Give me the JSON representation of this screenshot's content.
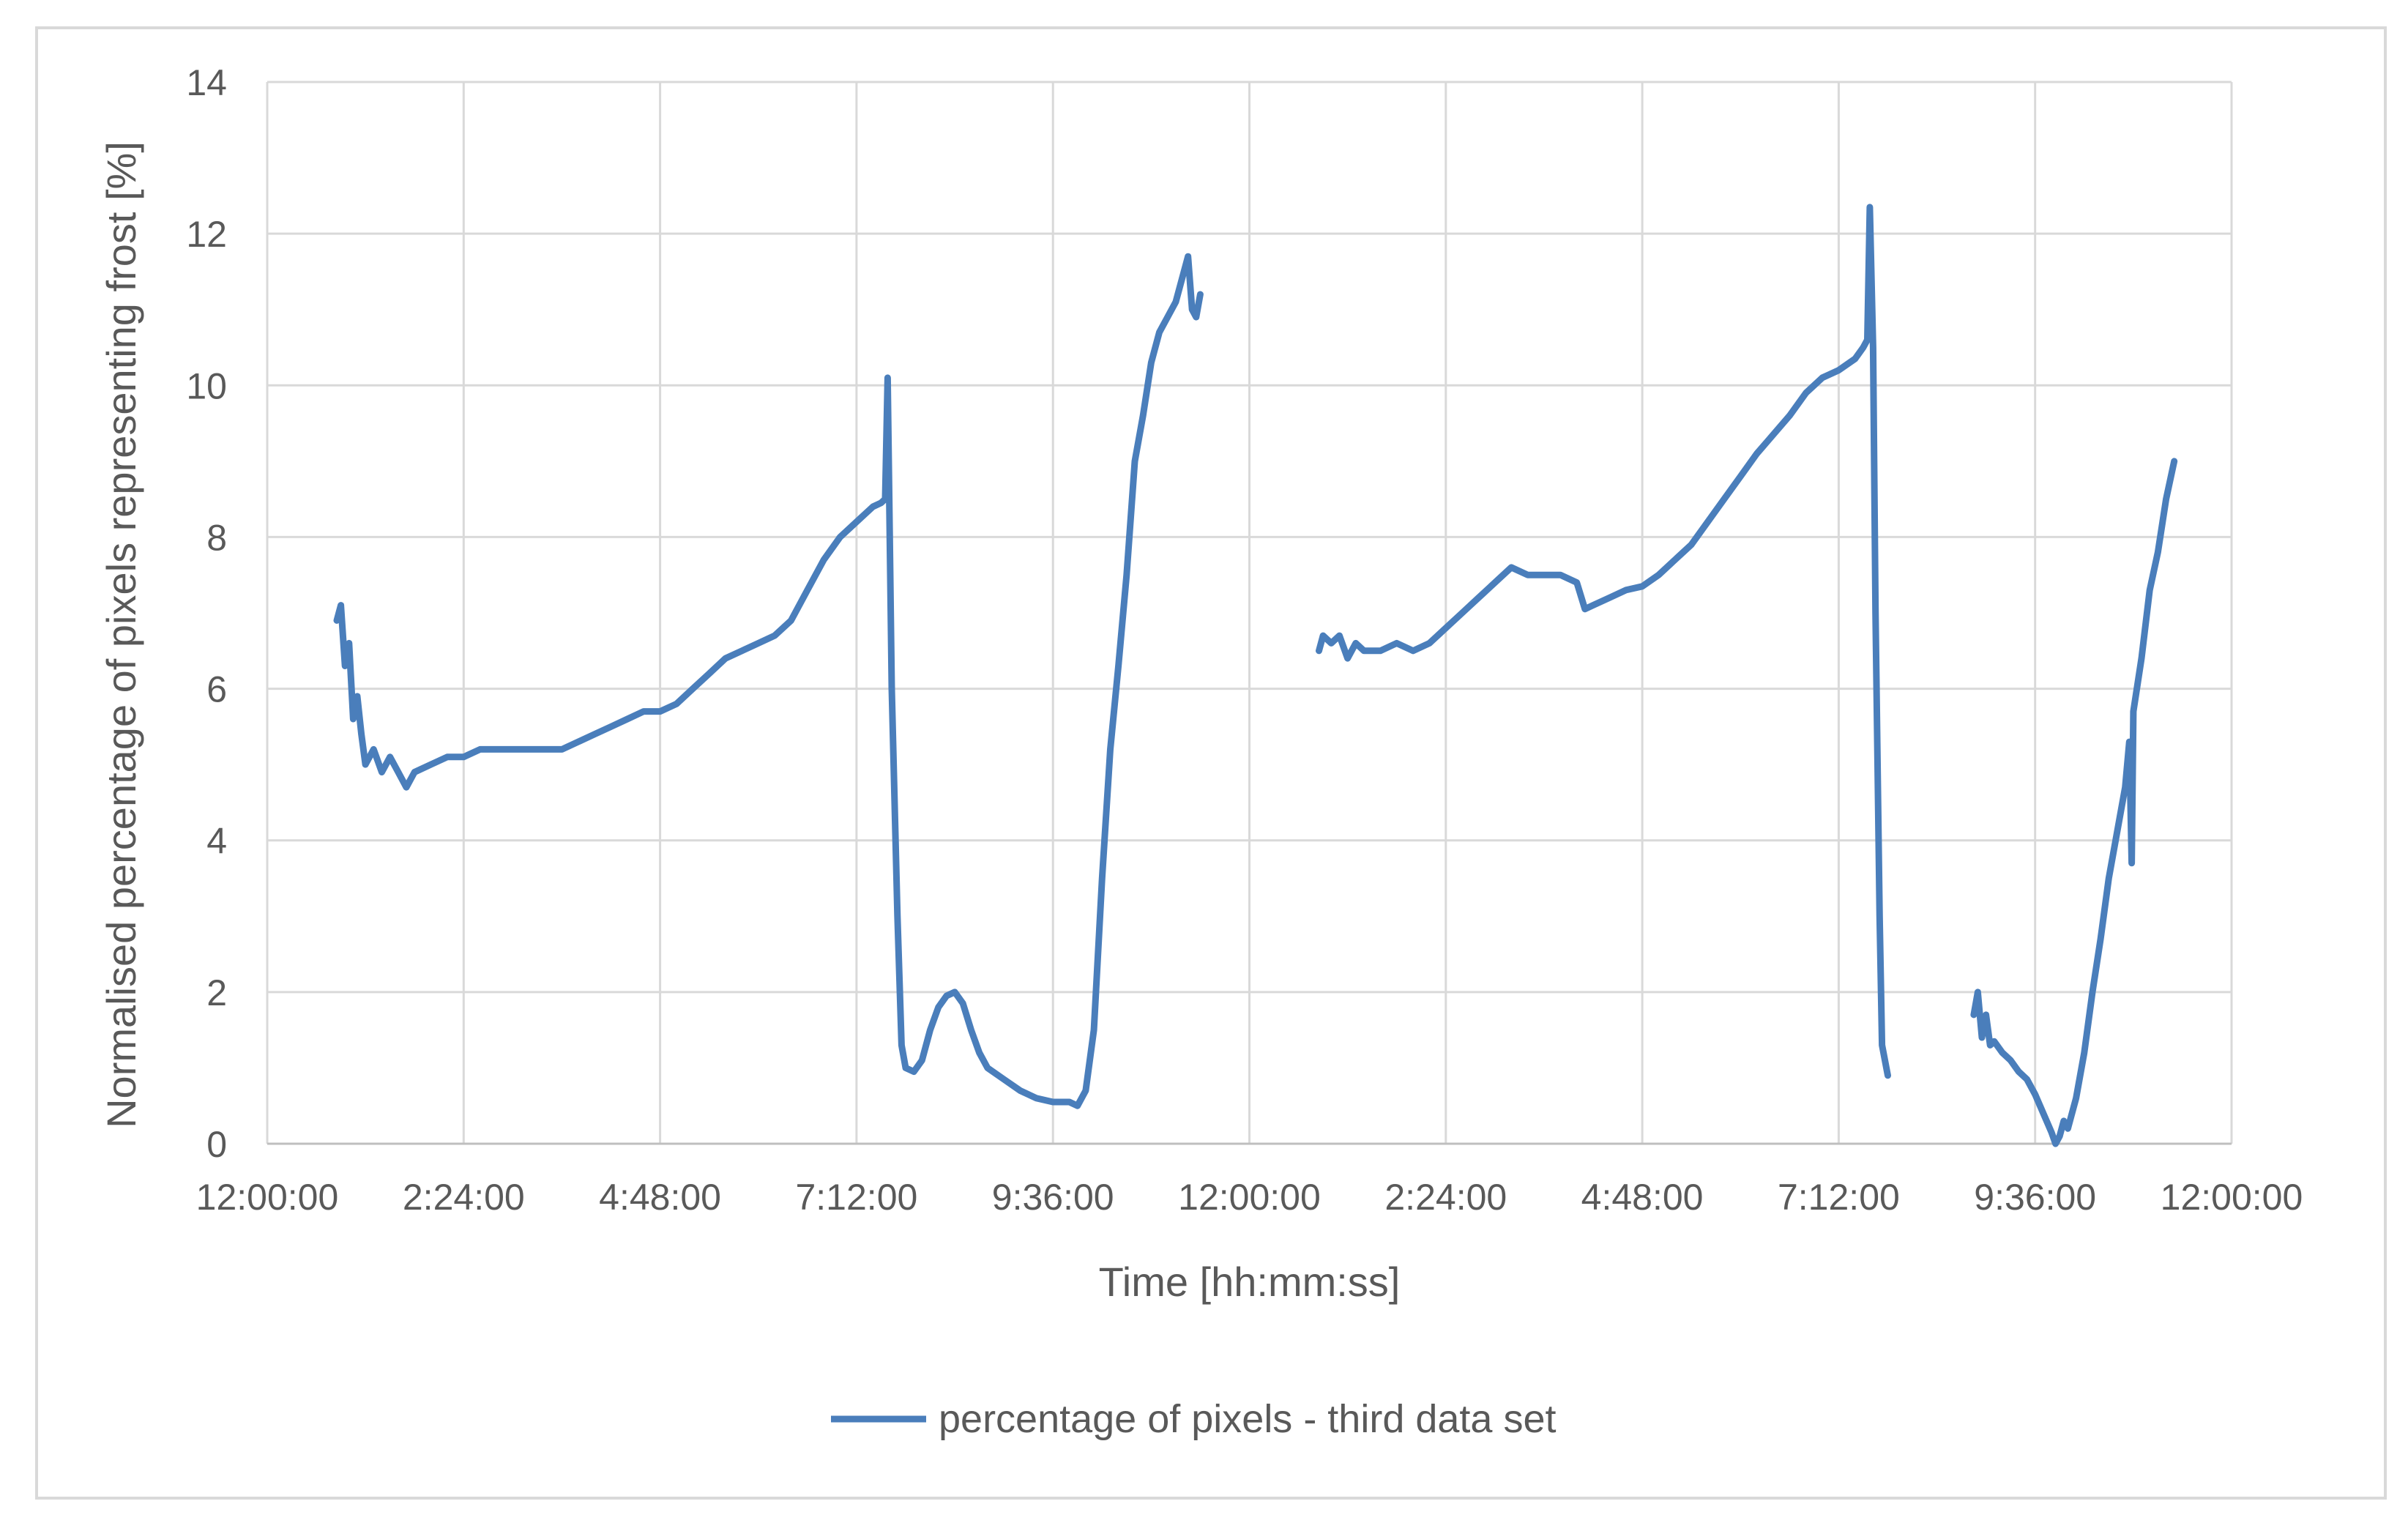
{
  "chart_data": {
    "type": "line",
    "title": "",
    "xlabel": "Time [hh:mm:ss]",
    "ylabel": "Normalised percentage of pixels representing frost  [%]",
    "ylim": [
      0,
      14
    ],
    "yticks": [
      0,
      2,
      4,
      6,
      8,
      10,
      12,
      14
    ],
    "xlim_hours": [
      0,
      24
    ],
    "xticks": [
      {
        "hour": 0,
        "label": "12:00:00"
      },
      {
        "hour": 2.4,
        "label": "2:24:00"
      },
      {
        "hour": 4.8,
        "label": "4:48:00"
      },
      {
        "hour": 7.2,
        "label": "7:12:00"
      },
      {
        "hour": 9.6,
        "label": "9:36:00"
      },
      {
        "hour": 12,
        "label": "12:00:00"
      },
      {
        "hour": 14.4,
        "label": "2:24:00"
      },
      {
        "hour": 16.8,
        "label": "4:48:00"
      },
      {
        "hour": 19.2,
        "label": "7:12:00"
      },
      {
        "hour": 21.6,
        "label": "9:36:00"
      },
      {
        "hour": 24,
        "label": "12:00:00"
      }
    ],
    "grid": true,
    "legend_position": "bottom",
    "color": "#4a7ebb",
    "series": [
      {
        "name": "percentage of pixels - third data set",
        "segments": [
          [
            [
              0.85,
              6.9
            ],
            [
              0.9,
              7.1
            ],
            [
              0.95,
              6.3
            ],
            [
              1.0,
              6.6
            ],
            [
              1.05,
              5.6
            ],
            [
              1.1,
              5.9
            ],
            [
              1.15,
              5.4
            ],
            [
              1.2,
              5.0
            ],
            [
              1.3,
              5.2
            ],
            [
              1.4,
              4.9
            ],
            [
              1.5,
              5.1
            ],
            [
              1.6,
              4.9
            ],
            [
              1.7,
              4.7
            ],
            [
              1.8,
              4.9
            ],
            [
              2.0,
              5.0
            ],
            [
              2.2,
              5.1
            ],
            [
              2.4,
              5.1
            ],
            [
              2.6,
              5.2
            ],
            [
              2.8,
              5.2
            ],
            [
              3.0,
              5.2
            ],
            [
              3.2,
              5.2
            ],
            [
              3.4,
              5.2
            ],
            [
              3.6,
              5.2
            ],
            [
              3.8,
              5.3
            ],
            [
              4.0,
              5.4
            ],
            [
              4.2,
              5.5
            ],
            [
              4.4,
              5.6
            ],
            [
              4.6,
              5.7
            ],
            [
              4.8,
              5.7
            ],
            [
              5.0,
              5.8
            ],
            [
              5.2,
              6.0
            ],
            [
              5.4,
              6.2
            ],
            [
              5.6,
              6.4
            ],
            [
              5.8,
              6.5
            ],
            [
              6.0,
              6.6
            ],
            [
              6.2,
              6.7
            ],
            [
              6.4,
              6.9
            ],
            [
              6.6,
              7.3
            ],
            [
              6.8,
              7.7
            ],
            [
              7.0,
              8.0
            ],
            [
              7.2,
              8.2
            ],
            [
              7.4,
              8.4
            ],
            [
              7.5,
              8.45
            ],
            [
              7.55,
              8.5
            ],
            [
              7.58,
              10.1
            ],
            [
              7.6,
              8.5
            ],
            [
              7.63,
              6.0
            ],
            [
              7.7,
              3.0
            ],
            [
              7.75,
              1.3
            ],
            [
              7.8,
              1.0
            ],
            [
              7.9,
              0.95
            ],
            [
              8.0,
              1.1
            ],
            [
              8.1,
              1.5
            ],
            [
              8.2,
              1.8
            ],
            [
              8.3,
              1.95
            ],
            [
              8.4,
              2.0
            ],
            [
              8.5,
              1.85
            ],
            [
              8.6,
              1.5
            ],
            [
              8.7,
              1.2
            ],
            [
              8.8,
              1.0
            ],
            [
              9.0,
              0.85
            ],
            [
              9.2,
              0.7
            ],
            [
              9.4,
              0.6
            ],
            [
              9.6,
              0.55
            ],
            [
              9.8,
              0.55
            ],
            [
              9.9,
              0.5
            ],
            [
              10.0,
              0.7
            ],
            [
              10.1,
              1.5
            ],
            [
              10.2,
              3.5
            ],
            [
              10.3,
              5.2
            ],
            [
              10.4,
              6.3
            ],
            [
              10.5,
              7.5
            ],
            [
              10.6,
              9.0
            ],
            [
              10.7,
              9.6
            ],
            [
              10.8,
              10.3
            ],
            [
              10.9,
              10.7
            ],
            [
              11.0,
              10.9
            ],
            [
              11.1,
              11.1
            ],
            [
              11.2,
              11.5
            ],
            [
              11.25,
              11.7
            ],
            [
              11.3,
              11.0
            ],
            [
              11.35,
              10.9
            ],
            [
              11.4,
              11.2
            ]
          ],
          [
            [
              12.85,
              6.5
            ],
            [
              12.9,
              6.7
            ],
            [
              13.0,
              6.6
            ],
            [
              13.1,
              6.7
            ],
            [
              13.2,
              6.4
            ],
            [
              13.3,
              6.6
            ],
            [
              13.4,
              6.5
            ],
            [
              13.6,
              6.5
            ],
            [
              13.8,
              6.6
            ],
            [
              14.0,
              6.5
            ],
            [
              14.2,
              6.6
            ],
            [
              14.4,
              6.8
            ],
            [
              14.6,
              7.0
            ],
            [
              14.8,
              7.2
            ],
            [
              15.0,
              7.4
            ],
            [
              15.2,
              7.6
            ],
            [
              15.4,
              7.5
            ],
            [
              15.6,
              7.5
            ],
            [
              15.8,
              7.5
            ],
            [
              16.0,
              7.4
            ],
            [
              16.1,
              7.05
            ],
            [
              16.2,
              7.1
            ],
            [
              16.4,
              7.2
            ],
            [
              16.6,
              7.3
            ],
            [
              16.8,
              7.35
            ],
            [
              17.0,
              7.5
            ],
            [
              17.2,
              7.7
            ],
            [
              17.4,
              7.9
            ],
            [
              17.6,
              8.2
            ],
            [
              17.8,
              8.5
            ],
            [
              18.0,
              8.8
            ],
            [
              18.2,
              9.1
            ],
            [
              18.4,
              9.35
            ],
            [
              18.6,
              9.6
            ],
            [
              18.8,
              9.9
            ],
            [
              19.0,
              10.1
            ],
            [
              19.2,
              10.2
            ],
            [
              19.4,
              10.35
            ],
            [
              19.5,
              10.5
            ],
            [
              19.55,
              10.6
            ],
            [
              19.58,
              12.35
            ],
            [
              19.62,
              10.5
            ],
            [
              19.65,
              7.0
            ],
            [
              19.7,
              3.0
            ],
            [
              19.73,
              1.3
            ],
            [
              19.8,
              0.9
            ]
          ],
          [
            [
              20.85,
              1.7
            ],
            [
              20.9,
              2.0
            ],
            [
              20.95,
              1.4
            ],
            [
              21.0,
              1.7
            ],
            [
              21.05,
              1.3
            ],
            [
              21.1,
              1.35
            ],
            [
              21.2,
              1.2
            ],
            [
              21.3,
              1.1
            ],
            [
              21.4,
              0.95
            ],
            [
              21.5,
              0.85
            ],
            [
              21.6,
              0.65
            ],
            [
              21.7,
              0.4
            ],
            [
              21.8,
              0.15
            ],
            [
              21.85,
              0.0
            ],
            [
              21.9,
              0.1
            ],
            [
              21.95,
              0.3
            ],
            [
              22.0,
              0.2
            ],
            [
              22.1,
              0.6
            ],
            [
              22.2,
              1.2
            ],
            [
              22.3,
              2.0
            ],
            [
              22.4,
              2.7
            ],
            [
              22.5,
              3.5
            ],
            [
              22.6,
              4.1
            ],
            [
              22.7,
              4.7
            ],
            [
              22.75,
              5.3
            ],
            [
              22.78,
              3.7
            ],
            [
              22.8,
              5.7
            ],
            [
              22.9,
              6.4
            ],
            [
              23.0,
              7.3
            ],
            [
              23.1,
              7.8
            ],
            [
              23.2,
              8.5
            ],
            [
              23.3,
              9.0
            ]
          ]
        ]
      }
    ]
  }
}
